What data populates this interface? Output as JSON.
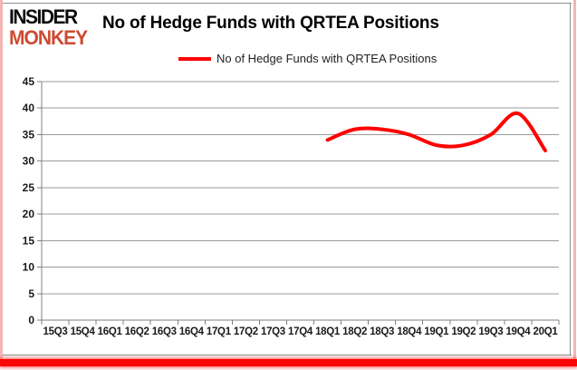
{
  "logo": {
    "line1": "INSIDER",
    "line2": "MONKEY"
  },
  "title": "No of Hedge Funds with QRTEA Positions",
  "legend": {
    "label": "No of Hedge Funds with QRTEA Positions"
  },
  "colors": {
    "series_red": "#ff0000",
    "logo_red": "#cd4a31",
    "grid": "#9b9b9b",
    "axis": "#808080",
    "tick_text": "#1a1a1a",
    "border_pink": "#f4b5b5",
    "hairline": "#8f8f8f",
    "underline_red": "#fa0404"
  },
  "chart_data": {
    "type": "line",
    "title": "No of Hedge Funds with QRTEA Positions",
    "categories": [
      "15Q3",
      "15Q4",
      "16Q1",
      "16Q2",
      "16Q3",
      "16Q4",
      "17Q1",
      "17Q2",
      "17Q3",
      "17Q4",
      "18Q1",
      "18Q2",
      "18Q3",
      "18Q4",
      "19Q1",
      "19Q2",
      "19Q3",
      "19Q4",
      "20Q1"
    ],
    "series": [
      {
        "name": "No of Hedge Funds with QRTEA Positions",
        "color": "#ff0000",
        "data_start_category": "18Q1",
        "values": [
          34,
          36,
          36,
          35,
          33,
          33,
          35,
          39,
          32
        ]
      }
    ],
    "xlabel": "",
    "ylabel": "",
    "ylim": [
      0,
      45
    ],
    "ytick_step": 5,
    "grid": true,
    "legend_position": "top",
    "smooth": true
  }
}
